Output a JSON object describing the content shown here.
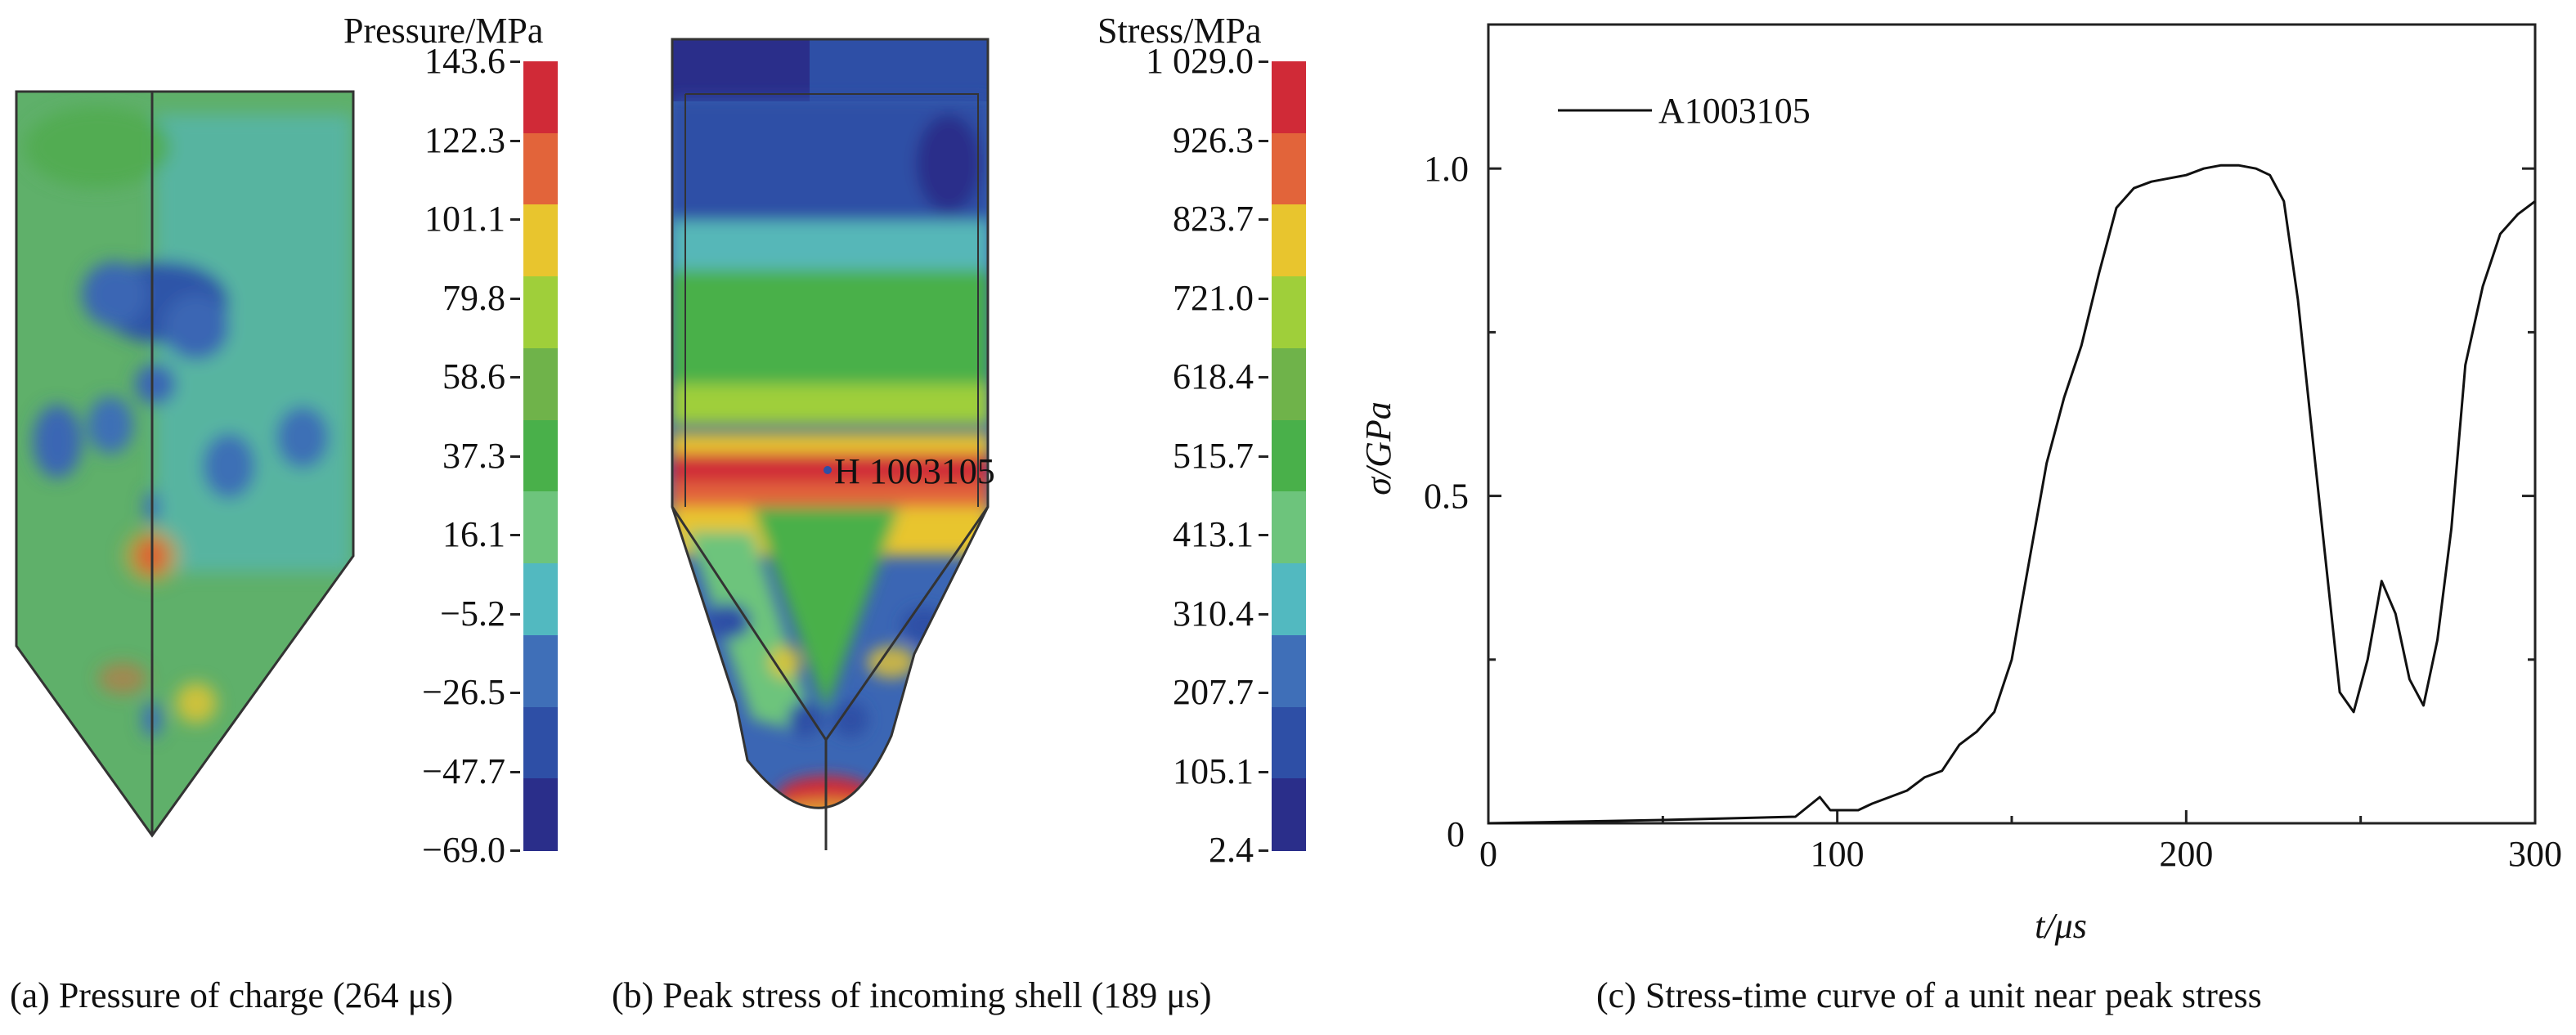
{
  "panel_a": {
    "colorbar_title": "Pressure/MPa",
    "ticks": [
      "143.6",
      "122.3",
      "101.1",
      "79.8",
      "58.6",
      "37.3",
      "16.1",
      "−5.2",
      "−26.5",
      "−47.7",
      "−69.0"
    ],
    "colors": [
      "#d02a37",
      "#e2643a",
      "#e8c52e",
      "#9fcf3a",
      "#6fb34a",
      "#49b04a",
      "#6dc47c",
      "#52b9c0",
      "#3f6fb8",
      "#2e4fa6",
      "#2a2e8a"
    ],
    "caption": "(a) Pressure of charge (264 μs)"
  },
  "panel_b": {
    "colorbar_title": "Stress/MPa",
    "ticks": [
      "1 029.0",
      "926.3",
      "823.7",
      "721.0",
      "618.4",
      "515.7",
      "413.1",
      "310.4",
      "207.7",
      "105.1",
      "2.4"
    ],
    "colors": [
      "#d02a37",
      "#e2643a",
      "#e8c52e",
      "#9fcf3a",
      "#6fb34a",
      "#49b04a",
      "#6dc47c",
      "#52b9c0",
      "#3f6fb8",
      "#2e4fa6",
      "#2a2e8a"
    ],
    "node_label": "H 1003105",
    "caption": "(b) Peak stress of incoming shell (189 μs)"
  },
  "panel_c": {
    "caption": "(c) Stress-time curve of a unit near peak stress",
    "chart_data": {
      "type": "line",
      "title": "",
      "xlabel": "t/μs",
      "ylabel": "σ/GPa",
      "xlim": [
        0,
        300
      ],
      "ylim": [
        0,
        1.22
      ],
      "xticks": [
        0,
        100,
        200,
        300
      ],
      "yticks": [
        0.5,
        1.0
      ],
      "ytick_labels": [
        "0.5",
        "1.0"
      ],
      "xtick_labels": [
        "0",
        "100",
        "200",
        "300"
      ],
      "grid": false,
      "legend_position": "top-left",
      "series": [
        {
          "name": "A1003105",
          "x": [
            0,
            50,
            88,
            95,
            98,
            100,
            104,
            106,
            110,
            115,
            120,
            125,
            130,
            135,
            140,
            145,
            150,
            155,
            160,
            165,
            170,
            175,
            180,
            185,
            190,
            195,
            200,
            205,
            210,
            215,
            220,
            224,
            228,
            232,
            236,
            240,
            244,
            248,
            252,
            256,
            260,
            264,
            268,
            272,
            276,
            280,
            285,
            290,
            295,
            300
          ],
          "y": [
            0.0,
            0.005,
            0.01,
            0.04,
            0.02,
            0.02,
            0.02,
            0.02,
            0.03,
            0.04,
            0.05,
            0.07,
            0.08,
            0.12,
            0.14,
            0.17,
            0.25,
            0.4,
            0.55,
            0.65,
            0.73,
            0.84,
            0.94,
            0.97,
            0.98,
            0.985,
            0.99,
            1.0,
            1.005,
            1.005,
            1.0,
            0.99,
            0.95,
            0.8,
            0.6,
            0.4,
            0.2,
            0.17,
            0.25,
            0.37,
            0.32,
            0.22,
            0.18,
            0.28,
            0.45,
            0.7,
            0.82,
            0.9,
            0.93,
            0.95
          ]
        }
      ]
    }
  }
}
